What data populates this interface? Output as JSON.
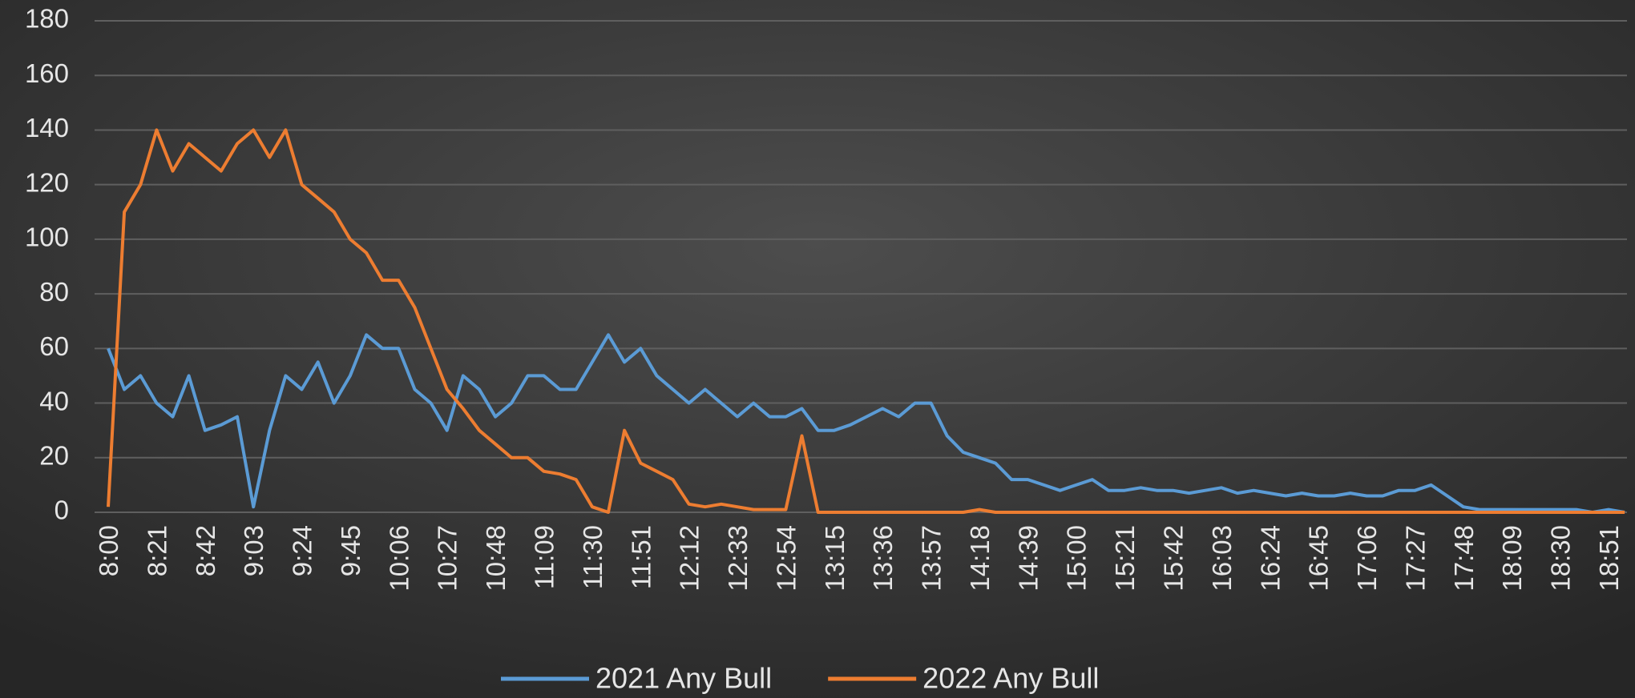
{
  "chart_data": {
    "type": "line",
    "categories": [
      "8:00",
      null,
      null,
      "8:21",
      null,
      null,
      "8:42",
      null,
      null,
      "9:03",
      null,
      null,
      "9:24",
      null,
      null,
      "9:45",
      null,
      null,
      "10:06",
      null,
      null,
      "10:27",
      null,
      null,
      "10:48",
      null,
      null,
      "11:09",
      null,
      null,
      "11:30",
      null,
      null,
      "11:51",
      null,
      null,
      "12:12",
      null,
      null,
      "12:33",
      null,
      null,
      "12:54",
      null,
      null,
      "13:15",
      null,
      null,
      "13:36",
      null,
      null,
      "13:57",
      null,
      null,
      "14:18",
      null,
      null,
      "14:39",
      null,
      null,
      "15:00",
      null,
      null,
      "15:21",
      null,
      null,
      "15:42",
      null,
      null,
      "16:03",
      null,
      null,
      "16:24",
      null,
      null,
      "16:45",
      null,
      null,
      "17:06",
      null,
      null,
      "17:27",
      null,
      null,
      "17:48",
      null,
      null,
      "18:09",
      null,
      null,
      "18:30",
      null,
      null,
      "18:51",
      null
    ],
    "series": [
      {
        "name": "2021 Any Bull",
        "color": "#5b9bd5",
        "values": [
          60,
          45,
          50,
          40,
          35,
          50,
          30,
          32,
          35,
          2,
          30,
          50,
          45,
          55,
          40,
          50,
          65,
          60,
          60,
          45,
          40,
          30,
          50,
          45,
          35,
          40,
          50,
          50,
          45,
          45,
          55,
          65,
          55,
          60,
          50,
          45,
          40,
          45,
          40,
          35,
          40,
          35,
          35,
          38,
          30,
          30,
          32,
          35,
          38,
          35,
          40,
          40,
          28,
          22,
          20,
          18,
          12,
          12,
          10,
          8,
          10,
          12,
          8,
          8,
          9,
          8,
          8,
          7,
          8,
          9,
          7,
          8,
          7,
          6,
          7,
          6,
          6,
          7,
          6,
          6,
          8,
          8,
          10,
          6,
          2,
          1,
          1,
          1,
          1,
          1,
          1,
          1,
          0,
          1,
          0
        ]
      },
      {
        "name": "2022 Any Bull",
        "color": "#ed7d31",
        "values": [
          2,
          110,
          120,
          140,
          125,
          135,
          130,
          125,
          135,
          140,
          130,
          140,
          120,
          115,
          110,
          100,
          95,
          85,
          85,
          75,
          60,
          45,
          38,
          30,
          25,
          20,
          20,
          15,
          14,
          12,
          2,
          0,
          30,
          18,
          15,
          12,
          3,
          2,
          3,
          2,
          1,
          1,
          1,
          28,
          0,
          0,
          0,
          0,
          0,
          0,
          0,
          0,
          0,
          0,
          1,
          0,
          0,
          0,
          0,
          0,
          0,
          0,
          0,
          0,
          0,
          0,
          0,
          0,
          0,
          0,
          0,
          0,
          0,
          0,
          0,
          0,
          0,
          0,
          0,
          0,
          0,
          0,
          0,
          0,
          0,
          0,
          0,
          0,
          0,
          0,
          0,
          0,
          0,
          0,
          0
        ]
      }
    ],
    "ylim": [
      0,
      180
    ],
    "yticks": [
      0,
      20,
      40,
      60,
      80,
      100,
      120,
      140,
      160,
      180
    ],
    "grid": true,
    "legend": "bottom"
  }
}
